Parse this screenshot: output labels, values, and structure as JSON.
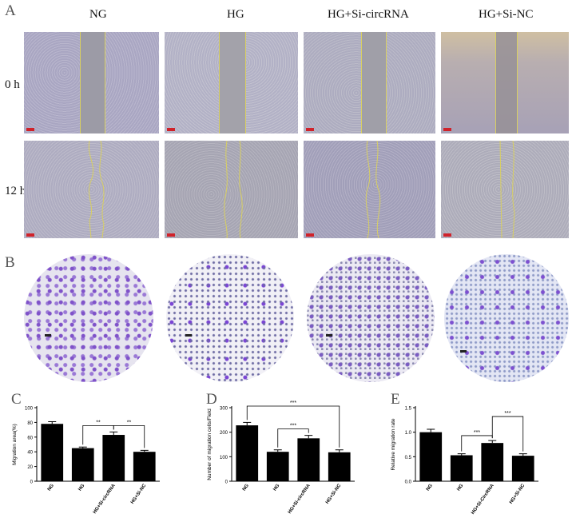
{
  "figure": {
    "panel_a_letter": "A",
    "panel_b_letter": "B",
    "panel_c_letter": "C",
    "panel_d_letter": "D",
    "panel_e_letter": "E",
    "groups": [
      "NG",
      "HG",
      "HG+Si-circRNA",
      "HG+Si-NC"
    ],
    "timepoints": [
      "0 h",
      "12 h"
    ],
    "colors": {
      "bar": "#000000",
      "wound_line": "#d8cf62",
      "scale_bar": "#d0222a",
      "crystal_violet": "#6a3fbf"
    }
  },
  "chart_data": [
    {
      "type": "bar",
      "categories": [
        "NG",
        "HG",
        "HG+Si-circRNA",
        "HG+Si-NC"
      ],
      "values": [
        78,
        45,
        63,
        40
      ],
      "errors": [
        3,
        1.5,
        4,
        2
      ],
      "ylabel": "Migration area(%)",
      "ylim": [
        0,
        100
      ],
      "yticks": [
        0,
        20,
        40,
        60,
        80,
        100
      ],
      "significance": [
        {
          "from": 1,
          "to": 2,
          "label": "**"
        },
        {
          "from": 2,
          "to": 3,
          "label": "**"
        }
      ]
    },
    {
      "type": "bar",
      "categories": [
        "NG",
        "HG",
        "HG+Si-circRNA",
        "HG+Si-NC"
      ],
      "values": [
        228,
        120,
        175,
        118
      ],
      "errors": [
        12,
        8,
        12,
        10
      ],
      "ylabel": "Number of migration cells/Field",
      "ylim": [
        0,
        300
      ],
      "yticks": [
        0,
        100,
        200,
        300
      ],
      "significance": [
        {
          "from": 1,
          "to": 2,
          "label": "***"
        },
        {
          "from": 0,
          "to": 3,
          "label": "***"
        }
      ]
    },
    {
      "type": "bar",
      "categories": [
        "NG",
        "HG",
        "HG+Si-CircRNA",
        "HG+Si-NC"
      ],
      "values": [
        1.0,
        0.53,
        0.78,
        0.52
      ],
      "errors": [
        0.06,
        0.03,
        0.05,
        0.04
      ],
      "ylabel": "Relative migration rate",
      "ylim": [
        0,
        1.5
      ],
      "yticks": [
        0.0,
        0.5,
        1.0,
        1.5
      ],
      "significance": [
        {
          "from": 1,
          "to": 2,
          "label": "***"
        },
        {
          "from": 2,
          "to": 3,
          "label": "***"
        }
      ]
    }
  ]
}
